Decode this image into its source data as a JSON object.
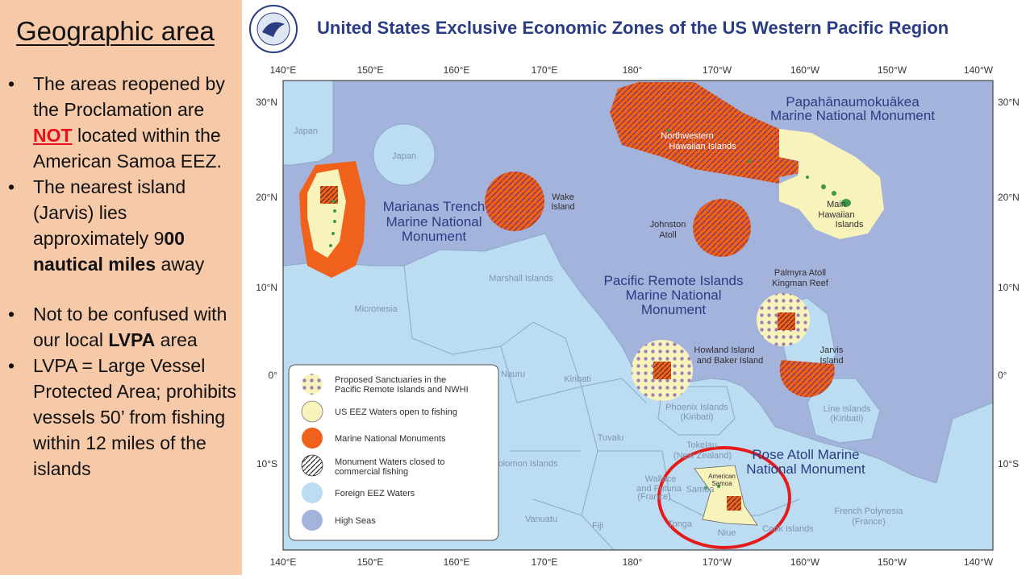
{
  "left_panel": {
    "heading": "Geographic area",
    "bullet1": {
      "pre": "The areas reopened by the Proclamation are ",
      "emph": "NOT",
      "post": " located within the American Samoa EEZ."
    },
    "bullet2": {
      "pre": "The nearest island (Jarvis) lies approximately 9",
      "bold1": "00",
      "bold2": "nautical miles",
      "post": " away"
    },
    "bullet3": {
      "pre": "Not to be confused with our local ",
      "bold": "LVPA",
      "post": " area"
    },
    "bullet4": {
      "text": "LVPA = Large Vessel Protected Area; prohibits vessels 50’ from fishing within 12 miles of the islands"
    }
  },
  "map": {
    "title": "United States Exclusive Economic Zones of the US Western Pacific Region",
    "lon_ticks": [
      "140°E",
      "150°E",
      "160°E",
      "170°E",
      "180°",
      "170°W",
      "160°W",
      "150°W",
      "140°W"
    ],
    "lat_ticks": [
      "30°N",
      "20°N",
      "10°N",
      "0°",
      "10°S"
    ],
    "labels": {
      "japan1": "Japan",
      "japan2": "Japan",
      "marianas1": "Marianas Trench",
      "marianas2": "Marine National",
      "marianas3": "Monument",
      "wake1": "Wake",
      "wake2": "Island",
      "papa1": "Papahānaumokuākea",
      "papa2": "Marine National Monument",
      "nwhi1": "Northwestern",
      "nwhi2": "Hawaiian Islands",
      "mhi1": "Main",
      "mhi2": "Hawaiian",
      "mhi3": "Islands",
      "johnston1": "Johnston",
      "johnston2": "Atoll",
      "pri1": "Pacific Remote Islands",
      "pri2": "Marine National",
      "pri3": "Monument",
      "palmyra1": "Palmyra Atoll",
      "palmyra2": "Kingman Reef",
      "marshall": "Marshall Islands",
      "micronesia": "Micronesia",
      "howland1": "Howland Island",
      "howland2": "and Baker Island",
      "jarvis1": "Jarvis",
      "jarvis2": "Island",
      "nauru": "Nauru",
      "kiribati": "Kiribati",
      "phoenix1": "Phoenix Islands",
      "phoenix2": "(Kiribati)",
      "line1": "Line Islands",
      "line2": "(Kiribati)",
      "tuvalu": "Tuvalu",
      "tokelau1": "Tokelau",
      "tokelau2": "(New Zealand)",
      "solomon": "Solomon Islands",
      "rose1": "Rose Atoll Marine",
      "rose2": "National Monument",
      "amsamoa1": "American",
      "amsamoa2": "Samoa",
      "wallis1": "Wallace",
      "wallis2": "and Futuna",
      "wallis3": "(France)",
      "samoa": "Samoa",
      "vanuatu": "Vanuatu",
      "fiji": "Fiji",
      "tonga": "Tonga",
      "niue": "Niue",
      "cook": "Cook Islands",
      "fp1": "French Polynesia",
      "fp2": "(France)"
    },
    "legend": {
      "item1a": "Proposed Sanctuaries in the",
      "item1b": "Pacific Remote Islands and NWHI",
      "item2": "US EEZ Waters open to fishing",
      "item3": "Marine National Monuments",
      "item4a": "Monument Waters closed to",
      "item4b": "commercial fishing",
      "item5": "Foreign EEZ Waters",
      "item6": "High Seas"
    },
    "colors": {
      "high_seas": "#a4b3dc",
      "foreign_eez": "#bcdcf2",
      "us_eez_open": "#f8f2bb",
      "monument": "#f0621c",
      "highlight_circle": "#e51b1b",
      "title": "#2a3c82"
    }
  }
}
